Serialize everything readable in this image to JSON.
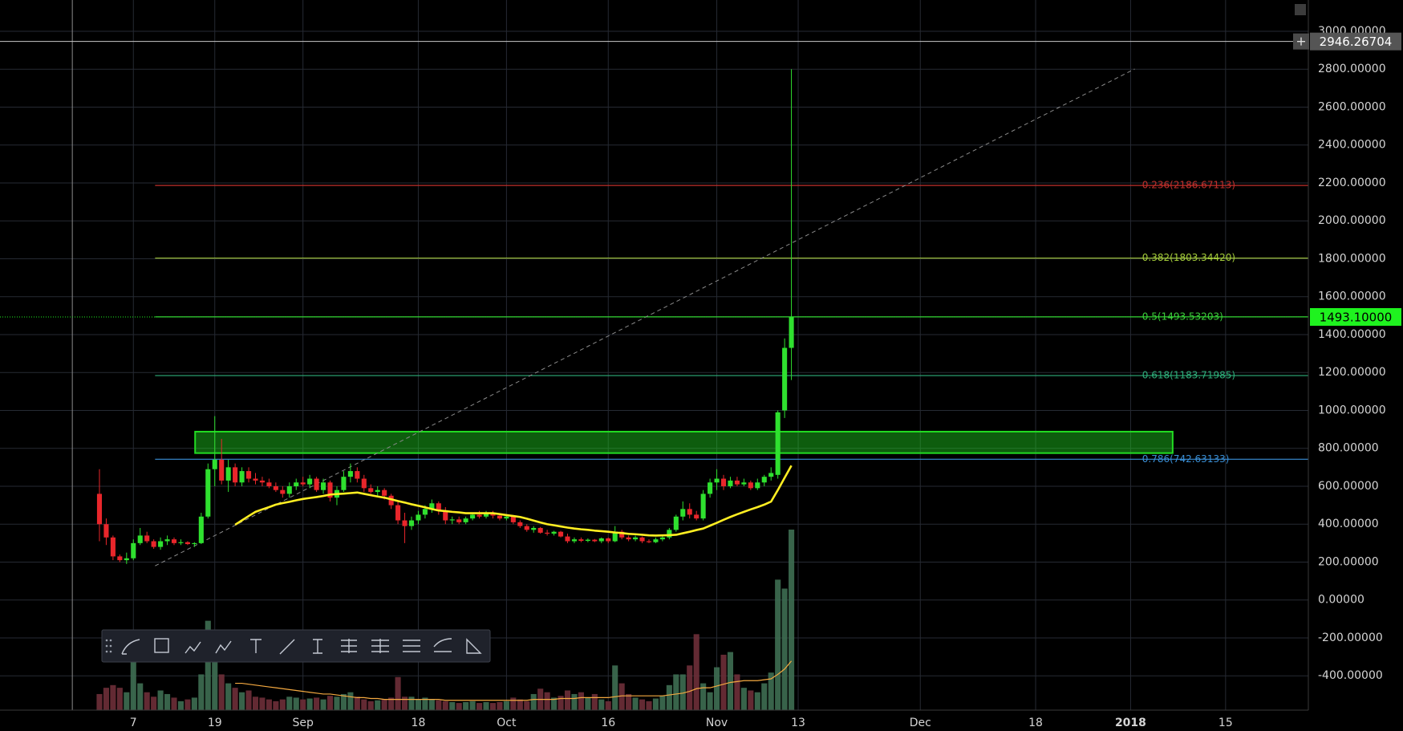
{
  "chart_data": {
    "type": "candlestick",
    "x": [
      1,
      2,
      3,
      4,
      5,
      6,
      7,
      8,
      9,
      10,
      11,
      12,
      13,
      14,
      15,
      16,
      17,
      18,
      19,
      20,
      21,
      22,
      23,
      24,
      25,
      26,
      27,
      28,
      29,
      30,
      31,
      32,
      33,
      34,
      35,
      36,
      37,
      38,
      39,
      40,
      41,
      42,
      43,
      44,
      45,
      46,
      47,
      48,
      49,
      50,
      51,
      52,
      53,
      54,
      55,
      56,
      57,
      58,
      59,
      60,
      61,
      62,
      63,
      64,
      65,
      66,
      67,
      68,
      69,
      70,
      71,
      72,
      73,
      74,
      75,
      76,
      77,
      78,
      79,
      80,
      81,
      82,
      83,
      84,
      85,
      86,
      87,
      88,
      89,
      90,
      91,
      92,
      93,
      94,
      95,
      96,
      97,
      98,
      99,
      100,
      101,
      102,
      103
    ],
    "open": [
      560,
      400,
      330,
      230,
      210,
      220,
      300,
      340,
      310,
      280,
      310,
      320,
      300,
      305,
      295,
      300,
      440,
      690,
      740,
      630,
      700,
      620,
      680,
      640,
      630,
      620,
      600,
      580,
      560,
      600,
      620,
      610,
      640,
      580,
      620,
      540,
      580,
      650,
      680,
      640,
      590,
      570,
      580,
      550,
      500,
      420,
      390,
      420,
      450,
      480,
      510,
      470,
      420,
      425,
      410,
      430,
      450,
      440,
      460,
      445,
      430,
      440,
      410,
      390,
      370,
      380,
      355,
      350,
      360,
      335,
      310,
      320,
      312,
      318,
      310,
      325,
      310,
      360,
      330,
      320,
      330,
      310,
      305,
      320,
      330,
      370,
      440,
      480,
      450,
      430,
      560,
      620,
      640,
      600,
      630,
      610,
      620,
      590,
      620,
      650,
      660,
      1000,
      1330
    ],
    "high": [
      690,
      430,
      340,
      240,
      250,
      320,
      380,
      360,
      320,
      330,
      340,
      330,
      320,
      310,
      305,
      460,
      720,
      970,
      850,
      740,
      720,
      700,
      700,
      670,
      650,
      640,
      620,
      600,
      620,
      640,
      650,
      660,
      650,
      640,
      630,
      600,
      680,
      720,
      700,
      660,
      610,
      600,
      590,
      560,
      520,
      460,
      440,
      470,
      500,
      530,
      520,
      490,
      440,
      440,
      440,
      460,
      470,
      470,
      470,
      455,
      450,
      445,
      420,
      400,
      390,
      385,
      370,
      365,
      365,
      350,
      330,
      330,
      325,
      322,
      330,
      330,
      390,
      370,
      340,
      340,
      335,
      320,
      330,
      340,
      380,
      450,
      520,
      510,
      470,
      580,
      640,
      690,
      660,
      650,
      650,
      640,
      630,
      640,
      660,
      700,
      1000,
      1380,
      2800
    ],
    "low": [
      310,
      290,
      210,
      200,
      190,
      210,
      290,
      300,
      270,
      265,
      290,
      290,
      290,
      290,
      280,
      295,
      430,
      600,
      610,
      570,
      600,
      600,
      620,
      610,
      600,
      590,
      570,
      540,
      540,
      580,
      600,
      590,
      570,
      560,
      520,
      500,
      570,
      620,
      620,
      570,
      560,
      550,
      530,
      480,
      400,
      300,
      370,
      400,
      430,
      460,
      450,
      400,
      400,
      400,
      400,
      420,
      430,
      430,
      430,
      420,
      420,
      400,
      380,
      360,
      355,
      350,
      340,
      340,
      330,
      300,
      300,
      305,
      305,
      305,
      300,
      300,
      305,
      320,
      310,
      310,
      300,
      300,
      300,
      310,
      320,
      360,
      420,
      430,
      420,
      420,
      540,
      580,
      580,
      590,
      600,
      600,
      580,
      580,
      600,
      630,
      640,
      960,
      1160
    ],
    "close": [
      400,
      330,
      230,
      210,
      220,
      300,
      340,
      310,
      280,
      310,
      320,
      300,
      305,
      295,
      300,
      440,
      690,
      740,
      630,
      700,
      620,
      680,
      640,
      630,
      620,
      600,
      580,
      560,
      600,
      620,
      610,
      640,
      580,
      620,
      540,
      580,
      650,
      680,
      640,
      590,
      570,
      580,
      550,
      500,
      420,
      390,
      420,
      450,
      480,
      510,
      470,
      420,
      425,
      410,
      430,
      450,
      440,
      460,
      445,
      430,
      440,
      410,
      390,
      370,
      380,
      355,
      350,
      360,
      335,
      310,
      320,
      312,
      318,
      310,
      325,
      310,
      360,
      330,
      320,
      330,
      310,
      305,
      320,
      330,
      370,
      440,
      480,
      450,
      430,
      560,
      620,
      640,
      600,
      630,
      610,
      620,
      590,
      620,
      650,
      670,
      990,
      1330,
      1493.1
    ],
    "volume": [
      18,
      25,
      28,
      25,
      20,
      60,
      30,
      20,
      15,
      22,
      18,
      14,
      10,
      12,
      14,
      40,
      100,
      60,
      40,
      30,
      25,
      20,
      22,
      15,
      14,
      12,
      10,
      12,
      15,
      14,
      12,
      13,
      14,
      12,
      16,
      15,
      18,
      20,
      15,
      12,
      10,
      11,
      12,
      14,
      37,
      15,
      15,
      12,
      14,
      12,
      11,
      10,
      9,
      8,
      9,
      10,
      8,
      9,
      8,
      9,
      10,
      14,
      12,
      10,
      18,
      24,
      20,
      14,
      16,
      22,
      18,
      20,
      14,
      18,
      12,
      10,
      50,
      30,
      18,
      14,
      12,
      10,
      13,
      16,
      28,
      40,
      40,
      50,
      85,
      30,
      20,
      48,
      62,
      65,
      40,
      25,
      22,
      20,
      30,
      42,
      146,
      136,
      202
    ],
    "ma": [
      null,
      null,
      null,
      null,
      null,
      null,
      null,
      null,
      null,
      null,
      null,
      null,
      null,
      null,
      null,
      null,
      null,
      null,
      null,
      null,
      397,
      420,
      443,
      465,
      478,
      490,
      503,
      511,
      518,
      526,
      533,
      538,
      543,
      549,
      556,
      559,
      561,
      564,
      567,
      560,
      553,
      546,
      540,
      531,
      522,
      514,
      505,
      497,
      489,
      480,
      472,
      469,
      465,
      462,
      458,
      458,
      458,
      458,
      458,
      453,
      448,
      443,
      438,
      429,
      419,
      409,
      400,
      394,
      388,
      382,
      377,
      373,
      370,
      366,
      363,
      360,
      356,
      353,
      349,
      347,
      344,
      341,
      340,
      341,
      342,
      344,
      352,
      360,
      369,
      377,
      392,
      407,
      423,
      438,
      452,
      465,
      478,
      490,
      503,
      519,
      580,
      645,
      709
    ],
    "volume_ma": [
      null,
      null,
      null,
      null,
      null,
      null,
      null,
      null,
      null,
      null,
      null,
      null,
      null,
      null,
      null,
      null,
      null,
      null,
      null,
      null,
      30,
      30,
      29,
      28,
      27,
      26,
      25,
      24,
      23,
      22,
      21,
      20,
      19,
      18,
      18,
      17,
      16,
      15,
      14,
      14,
      13,
      13,
      12,
      12,
      12,
      12,
      12,
      12,
      12,
      12,
      12,
      11,
      11,
      11,
      11,
      11,
      11,
      11,
      11,
      11,
      11,
      11,
      11,
      11,
      12,
      12,
      12,
      12,
      13,
      13,
      13,
      14,
      14,
      14,
      14,
      14,
      15,
      16,
      16,
      16,
      16,
      16,
      16,
      16,
      17,
      18,
      19,
      21,
      24,
      25,
      25,
      27,
      29,
      31,
      32,
      33,
      33,
      33,
      34,
      35,
      40,
      46,
      55
    ],
    "up_color": "#2fe02f",
    "down_color": "#e8262b",
    "volume_up_color": "#3e6e52",
    "volume_down_color": "#6e2f38",
    "ma_color": "#ffee22",
    "volume_ma_color": "#f4a940",
    "xlim": [
      -13.66,
      179.2
    ],
    "xticks": [
      {
        "value": 6,
        "label": "7"
      },
      {
        "value": 18,
        "label": "19"
      },
      {
        "value": 31,
        "label": "Sep"
      },
      {
        "value": 48,
        "label": "18"
      },
      {
        "value": 61,
        "label": "Oct"
      },
      {
        "value": 76,
        "label": "16"
      },
      {
        "value": 92,
        "label": "Nov"
      },
      {
        "value": 104,
        "label": "13"
      },
      {
        "value": 122,
        "label": "Dec"
      },
      {
        "value": 139,
        "label": "18"
      },
      {
        "value": 153,
        "label": "2018"
      },
      {
        "value": 167,
        "label": "15"
      }
    ],
    "ylim": [
      -581,
      3165
    ],
    "yticks": [
      {
        "value": -400,
        "label": "-400.00000"
      },
      {
        "value": -200,
        "label": "-200.00000"
      },
      {
        "value": 0,
        "label": "0.00000"
      },
      {
        "value": 200,
        "label": "200.00000"
      },
      {
        "value": 400,
        "label": "400.00000"
      },
      {
        "value": 600,
        "label": "600.00000"
      },
      {
        "value": 800,
        "label": "800.00000"
      },
      {
        "value": 1000,
        "label": "1000.00000"
      },
      {
        "value": 1200,
        "label": "1200.00000"
      },
      {
        "value": 1400,
        "label": "1400.00000"
      },
      {
        "value": 1600,
        "label": "1600.00000"
      },
      {
        "value": 1800,
        "label": "1800.00000"
      },
      {
        "value": 2000,
        "label": "2000.00000"
      },
      {
        "value": 2200,
        "label": "2200.00000"
      },
      {
        "value": 2400,
        "label": "2400.00000"
      },
      {
        "value": 2600,
        "label": "2600.00000"
      },
      {
        "value": 2800,
        "label": "2800.00000"
      },
      {
        "value": 3000,
        "label": "3000.00000"
      }
    ],
    "grid": true,
    "fib_start": 9.2,
    "fib_levels": [
      {
        "value": 2186.67113,
        "label": "0.236(2186.67113)",
        "color": "#c0302c"
      },
      {
        "value": 1803.3442,
        "label": "0.382(1803.34420)",
        "color": "#a4cc3a"
      },
      {
        "value": 1493.53203,
        "label": "0.5(1493.53203)",
        "color": "#3ccf3c"
      },
      {
        "value": 1183.71985,
        "label": "0.618(1183.71985)",
        "color": "#2eae7a"
      },
      {
        "value": 742.63133,
        "label": "0.786(742.63133)",
        "color": "#3a8fd6"
      }
    ],
    "fib_label_x": 154.7,
    "zone": {
      "x": [
        15.1,
        159.2
      ],
      "y": [
        775,
        888
      ],
      "color": "#22dd22"
    },
    "trend_line": {
      "x": [
        9.2,
        153.6
      ],
      "y": [
        180,
        2801
      ]
    },
    "crosshair": {
      "x": -3,
      "value": 2946.26704,
      "label": "2946.26704"
    },
    "last_price": {
      "value": 1493.1,
      "label": "1493.10000",
      "color": "#1ff21f"
    }
  }
}
